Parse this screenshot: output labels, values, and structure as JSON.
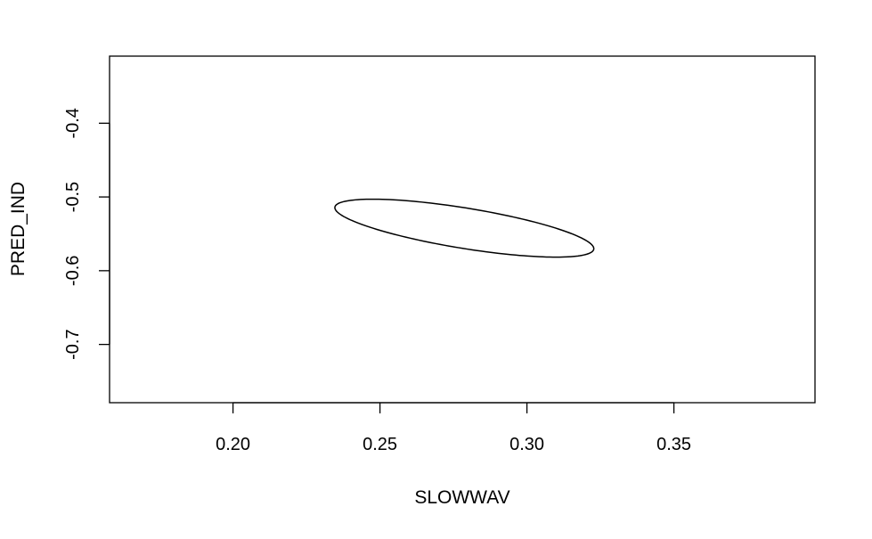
{
  "chart_data": {
    "type": "line",
    "title": "",
    "xlabel": "SLOWWAV",
    "ylabel": "PRED_IND",
    "xlim": [
      0.158,
      0.398
    ],
    "ylim": [
      -0.779,
      -0.309
    ],
    "x_ticks": [
      0.2,
      0.25,
      0.3,
      0.35
    ],
    "x_tick_labels": [
      "0.20",
      "0.25",
      "0.30",
      "0.35"
    ],
    "y_ticks": [
      -0.4,
      -0.5,
      -0.6,
      -0.7
    ],
    "y_tick_labels": [
      "-0.4",
      "-0.5",
      "-0.6",
      "-0.7"
    ],
    "grid": false,
    "legend": "none",
    "line_color": "#000000",
    "series": [
      {
        "shape": "ellipse",
        "center": [
          0.2787,
          -0.5423
        ],
        "semi_major": [
          0.044,
          -0.0291
        ],
        "semi_minor": [
          -0.0021,
          -0.0264
        ]
      }
    ]
  }
}
